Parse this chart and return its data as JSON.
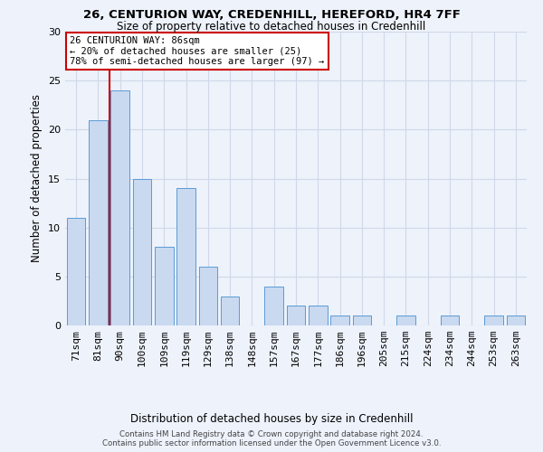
{
  "title1": "26, CENTURION WAY, CREDENHILL, HEREFORD, HR4 7FF",
  "title2": "Size of property relative to detached houses in Credenhill",
  "xlabel": "Distribution of detached houses by size in Credenhill",
  "ylabel": "Number of detached properties",
  "categories": [
    "71sqm",
    "81sqm",
    "90sqm",
    "100sqm",
    "109sqm",
    "119sqm",
    "129sqm",
    "138sqm",
    "148sqm",
    "157sqm",
    "167sqm",
    "177sqm",
    "186sqm",
    "196sqm",
    "205sqm",
    "215sqm",
    "224sqm",
    "234sqm",
    "244sqm",
    "253sqm",
    "263sqm"
  ],
  "values": [
    11,
    21,
    24,
    15,
    8,
    14,
    6,
    3,
    0,
    4,
    2,
    2,
    1,
    1,
    0,
    1,
    0,
    1,
    0,
    1,
    1
  ],
  "bar_color": "#c9d9f0",
  "bar_edge_color": "#5b9bd5",
  "grid_color": "#d0d8e8",
  "annotation_text_line1": "26 CENTURION WAY: 86sqm",
  "annotation_text_line2": "← 20% of detached houses are smaller (25)",
  "annotation_text_line3": "78% of semi-detached houses are larger (97) →",
  "annotation_box_color": "#ffffff",
  "annotation_box_edge": "#cc0000",
  "vline_color": "#cc0000",
  "footer1": "Contains HM Land Registry data © Crown copyright and database right 2024.",
  "footer2": "Contains public sector information licensed under the Open Government Licence v3.0.",
  "ylim": [
    0,
    30
  ],
  "yticks": [
    0,
    5,
    10,
    15,
    20,
    25,
    30
  ],
  "background_color": "#edf2fb"
}
